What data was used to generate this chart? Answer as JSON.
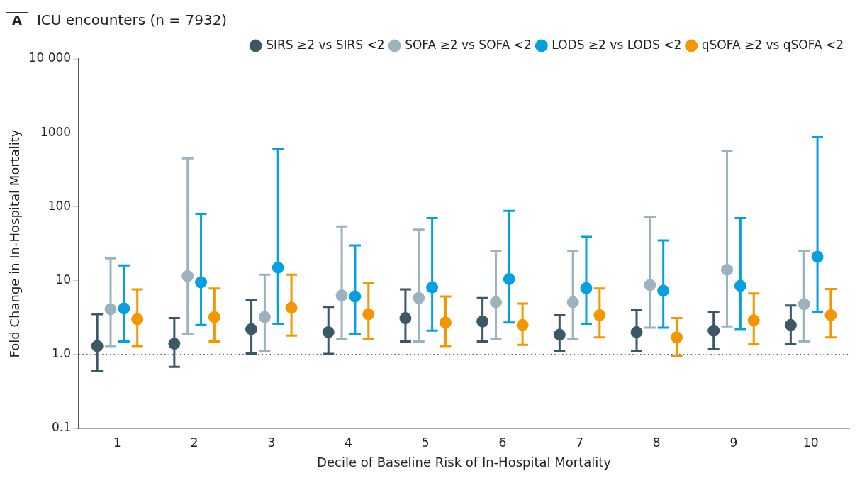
{
  "chart_data": {
    "type": "scatter",
    "title": "ICU encounters (n = 7932)",
    "annotations": [
      "A"
    ],
    "xlabel": "Decile of Baseline Risk of In-Hospital Mortality",
    "ylabel": "Fold Change in In-Hospital Mortality",
    "categories": [
      "1",
      "2",
      "3",
      "4",
      "5",
      "6",
      "7",
      "8",
      "9",
      "10"
    ],
    "log": "y",
    "ylim": [
      0.1,
      10000
    ],
    "yticks": [
      0.1,
      {
        "value": 1,
        "label": "1.0"
      },
      10,
      100,
      1000,
      {
        "value": 10000,
        "label": "10 000"
      }
    ],
    "grid": false,
    "legend": "top right",
    "marker": "circle",
    "ref_lines": [
      {
        "axis": "y",
        "value": 1,
        "color": "#555555",
        "line_style": "dotted"
      }
    ],
    "series": [
      {
        "name": "SIRS ≥2 vs SIRS <2",
        "color": "#3b5866",
        "values": [
          1.3,
          1.4,
          2.2,
          2.0,
          3.1,
          2.8,
          1.85,
          2.0,
          2.1,
          2.5
        ],
        "errors": [
          [
            0.6,
            3.5
          ],
          [
            0.68,
            3.1
          ],
          [
            1.03,
            5.4
          ],
          [
            1.02,
            4.4
          ],
          [
            1.5,
            7.6
          ],
          [
            1.5,
            5.8
          ],
          [
            1.1,
            3.4
          ],
          [
            1.1,
            4.0
          ],
          [
            1.2,
            3.8
          ],
          [
            1.4,
            4.6
          ]
        ]
      },
      {
        "name": "SOFA ≥2 vs SOFA <2",
        "color": "#9ab3bf",
        "values": [
          4.1,
          11.5,
          3.2,
          6.3,
          5.8,
          5.1,
          5.1,
          8.7,
          14,
          4.8
        ],
        "errors": [
          [
            1.3,
            20
          ],
          [
            1.9,
            450
          ],
          [
            1.1,
            12
          ],
          [
            1.6,
            54
          ],
          [
            1.5,
            49
          ],
          [
            1.6,
            25
          ],
          [
            1.6,
            25
          ],
          [
            2.3,
            73
          ],
          [
            2.4,
            560
          ],
          [
            1.5,
            25
          ]
        ]
      },
      {
        "name": "LODS ≥2 vs LODS <2",
        "color": "#069fdf",
        "values": [
          4.2,
          9.5,
          15,
          6.1,
          8.1,
          10.5,
          7.9,
          7.3,
          8.5,
          21
        ],
        "errors": [
          [
            1.5,
            16
          ],
          [
            2.5,
            80
          ],
          [
            2.6,
            600
          ],
          [
            1.9,
            30
          ],
          [
            2.1,
            70
          ],
          [
            2.7,
            88
          ],
          [
            2.6,
            39
          ],
          [
            2.3,
            35
          ],
          [
            2.2,
            70
          ],
          [
            3.7,
            870
          ]
        ]
      },
      {
        "name": "qSOFA ≥2 vs qSOFA <2",
        "color": "#f39600",
        "values": [
          3.0,
          3.2,
          4.3,
          3.5,
          2.7,
          2.5,
          3.4,
          1.7,
          2.9,
          3.4
        ],
        "errors": [
          [
            1.3,
            7.6
          ],
          [
            1.5,
            7.8
          ],
          [
            1.8,
            12
          ],
          [
            1.6,
            9.2
          ],
          [
            1.3,
            6.1
          ],
          [
            1.35,
            4.9
          ],
          [
            1.7,
            7.8
          ],
          [
            0.95,
            3.1
          ],
          [
            1.4,
            6.7
          ],
          [
            1.7,
            7.7
          ]
        ]
      }
    ]
  }
}
